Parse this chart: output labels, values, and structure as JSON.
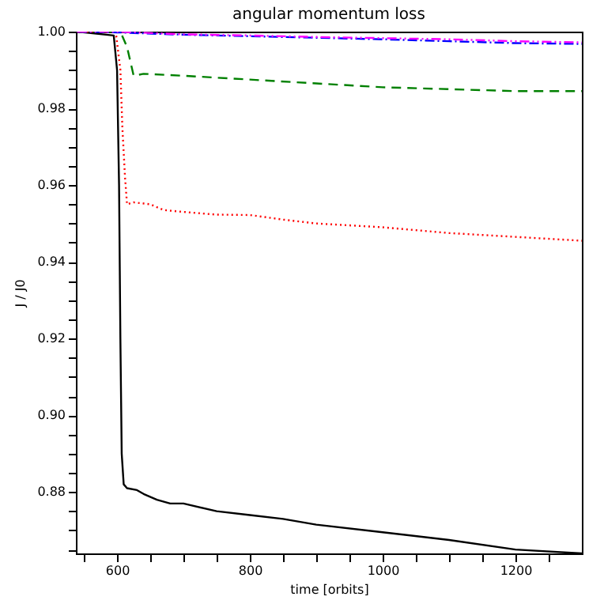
{
  "chart_data": {
    "type": "line",
    "title": "angular momentum loss",
    "xlabel": "time [orbits]",
    "ylabel": "J / J0",
    "xlim": [
      538,
      1300
    ],
    "ylim": [
      0.864,
      1.0
    ],
    "xticks": [
      {
        "value": 550,
        "label": null
      },
      600,
      {
        "value": 650,
        "label": null
      },
      {
        "value": 700,
        "label": null
      },
      {
        "value": 750,
        "label": null
      },
      800,
      {
        "value": 850,
        "label": null
      },
      {
        "value": 900,
        "label": null
      },
      {
        "value": 950,
        "label": null
      },
      1000,
      {
        "value": 1050,
        "label": null
      },
      {
        "value": 1100,
        "label": null
      },
      {
        "value": 1150,
        "label": null
      },
      1200,
      {
        "value": 1250,
        "label": null
      }
    ],
    "yticks": [
      {
        "value": 0.865,
        "label": null
      },
      {
        "value": 0.87,
        "label": null
      },
      {
        "value": 0.875,
        "label": null
      },
      {
        "value": 0.88,
        "label": "0.88"
      },
      {
        "value": 0.885,
        "label": null
      },
      {
        "value": 0.89,
        "label": null
      },
      {
        "value": 0.895,
        "label": null
      },
      {
        "value": 0.9,
        "label": "0.90"
      },
      {
        "value": 0.905,
        "label": null
      },
      {
        "value": 0.91,
        "label": null
      },
      {
        "value": 0.915,
        "label": null
      },
      {
        "value": 0.92,
        "label": "0.92"
      },
      {
        "value": 0.925,
        "label": null
      },
      {
        "value": 0.93,
        "label": null
      },
      {
        "value": 0.935,
        "label": null
      },
      {
        "value": 0.94,
        "label": "0.94"
      },
      {
        "value": 0.945,
        "label": null
      },
      {
        "value": 0.95,
        "label": null
      },
      {
        "value": 0.955,
        "label": null
      },
      {
        "value": 0.96,
        "label": "0.96"
      },
      {
        "value": 0.965,
        "label": null
      },
      {
        "value": 0.97,
        "label": null
      },
      {
        "value": 0.975,
        "label": null
      },
      {
        "value": 0.98,
        "label": "0.98"
      },
      {
        "value": 0.985,
        "label": null
      },
      {
        "value": 0.99,
        "label": null
      },
      {
        "value": 0.995,
        "label": null
      },
      {
        "value": 1.0,
        "label": "1.00"
      }
    ],
    "grid": false,
    "series": [
      {
        "color": "#000000",
        "line_style": "solid",
        "x": [
          540,
          595,
          600,
          603,
          605,
          607,
          610,
          615,
          630,
          640,
          660,
          680,
          700,
          750,
          800,
          850,
          900,
          1000,
          1100,
          1200,
          1300
        ],
        "values": [
          1.0,
          0.999,
          0.99,
          0.96,
          0.92,
          0.89,
          0.882,
          0.881,
          0.8805,
          0.8795,
          0.878,
          0.877,
          0.877,
          0.875,
          0.874,
          0.873,
          0.8715,
          0.8695,
          0.8675,
          0.865,
          0.864
        ]
      },
      {
        "color": "#ff0000",
        "line_style": "dotted",
        "x": [
          540,
          598,
          605,
          608,
          612,
          615,
          625,
          650,
          670,
          700,
          750,
          800,
          850,
          900,
          1000,
          1100,
          1200,
          1300
        ],
        "values": [
          1.0,
          1.0,
          0.99,
          0.975,
          0.962,
          0.955,
          0.9555,
          0.955,
          0.9535,
          0.953,
          0.9523,
          0.9522,
          0.951,
          0.95,
          0.949,
          0.9475,
          0.9465,
          0.9455
        ]
      },
      {
        "color": "#008000",
        "line_style": "dashed",
        "x": [
          540,
          605,
          615,
          625,
          640,
          700,
          800,
          900,
          1000,
          1100,
          1200,
          1300
        ],
        "values": [
          1.0,
          1.0,
          0.996,
          0.9885,
          0.989,
          0.9885,
          0.9875,
          0.9865,
          0.9855,
          0.985,
          0.9845,
          0.9845
        ]
      },
      {
        "color": "#0000ff",
        "line_style": "dashdot",
        "x": [
          540,
          600,
          700,
          800,
          900,
          1000,
          1100,
          1200,
          1300
        ],
        "values": [
          1.0,
          0.9998,
          0.9992,
          0.9988,
          0.9984,
          0.998,
          0.9975,
          0.997,
          0.9968
        ]
      },
      {
        "color": "#ff00ff",
        "line_style": "dashdotdot",
        "x": [
          540,
          600,
          700,
          800,
          900,
          1000,
          1100,
          1200,
          1300
        ],
        "values": [
          1.0,
          1.0,
          0.9993,
          0.999,
          0.9986,
          0.9983,
          0.998,
          0.9975,
          0.9972
        ]
      }
    ]
  }
}
